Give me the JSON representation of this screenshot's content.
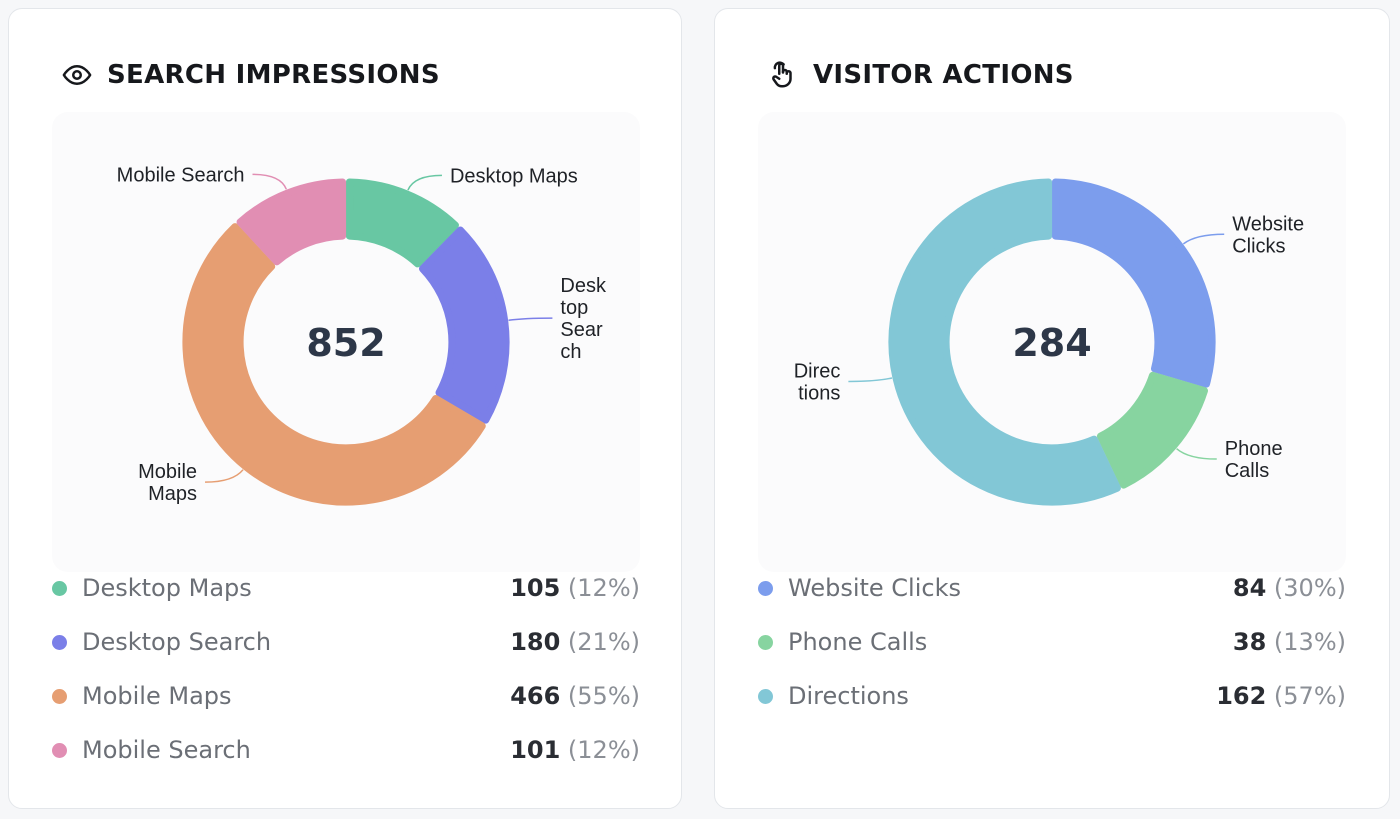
{
  "cards": [
    {
      "title": "SEARCH IMPRESSIONS",
      "icon": "eye-icon",
      "total": "852",
      "chart_data": {
        "type": "pie",
        "donut": true,
        "total": 852,
        "slices": [
          {
            "name": "Desktop Maps",
            "value": 105,
            "percent": "12%",
            "color": "#68c7a3",
            "label_lines": [
              "Desktop Maps"
            ],
            "label_side": "right"
          },
          {
            "name": "Desktop Search",
            "value": 180,
            "percent": "21%",
            "color": "#7b7fe8",
            "label_lines": [
              "Desk",
              "top",
              "Sear",
              "ch"
            ],
            "label_side": "right"
          },
          {
            "name": "Mobile Maps",
            "value": 466,
            "percent": "55%",
            "color": "#e69e72",
            "label_lines": [
              "Mobile",
              "Maps"
            ],
            "label_side": "left"
          },
          {
            "name": "Mobile Search",
            "value": 101,
            "percent": "12%",
            "color": "#e18eb3",
            "label_lines": [
              "Mobile Search"
            ],
            "label_side": "left"
          }
        ]
      },
      "legend": [
        {
          "name": "Desktop Maps",
          "value": "105",
          "percent": "(12%)"
        },
        {
          "name": "Desktop Search",
          "value": "180",
          "percent": "(21%)"
        },
        {
          "name": "Mobile Maps",
          "value": "466",
          "percent": "(55%)"
        },
        {
          "name": "Mobile Search",
          "value": "101",
          "percent": "(12%)"
        }
      ]
    },
    {
      "title": "VISITOR ACTIONS",
      "icon": "pointer-hand-icon",
      "total": "284",
      "chart_data": {
        "type": "pie",
        "donut": true,
        "total": 284,
        "slices": [
          {
            "name": "Website Clicks",
            "value": 84,
            "percent": "30%",
            "color": "#7c9ded",
            "label_lines": [
              "Website",
              "Clicks"
            ],
            "label_side": "right"
          },
          {
            "name": "Phone Calls",
            "value": 38,
            "percent": "13%",
            "color": "#87d4a0",
            "label_lines": [
              "Phone",
              "Calls"
            ],
            "label_side": "right"
          },
          {
            "name": "Directions",
            "value": 162,
            "percent": "57%",
            "color": "#82c7d6",
            "label_lines": [
              "Direc",
              "tions"
            ],
            "label_side": "left"
          }
        ]
      },
      "legend": [
        {
          "name": "Website Clicks",
          "value": "84",
          "percent": "(30%)"
        },
        {
          "name": "Phone Calls",
          "value": "38",
          "percent": "(13%)"
        },
        {
          "name": "Directions",
          "value": "162",
          "percent": "(57%)"
        }
      ]
    }
  ]
}
